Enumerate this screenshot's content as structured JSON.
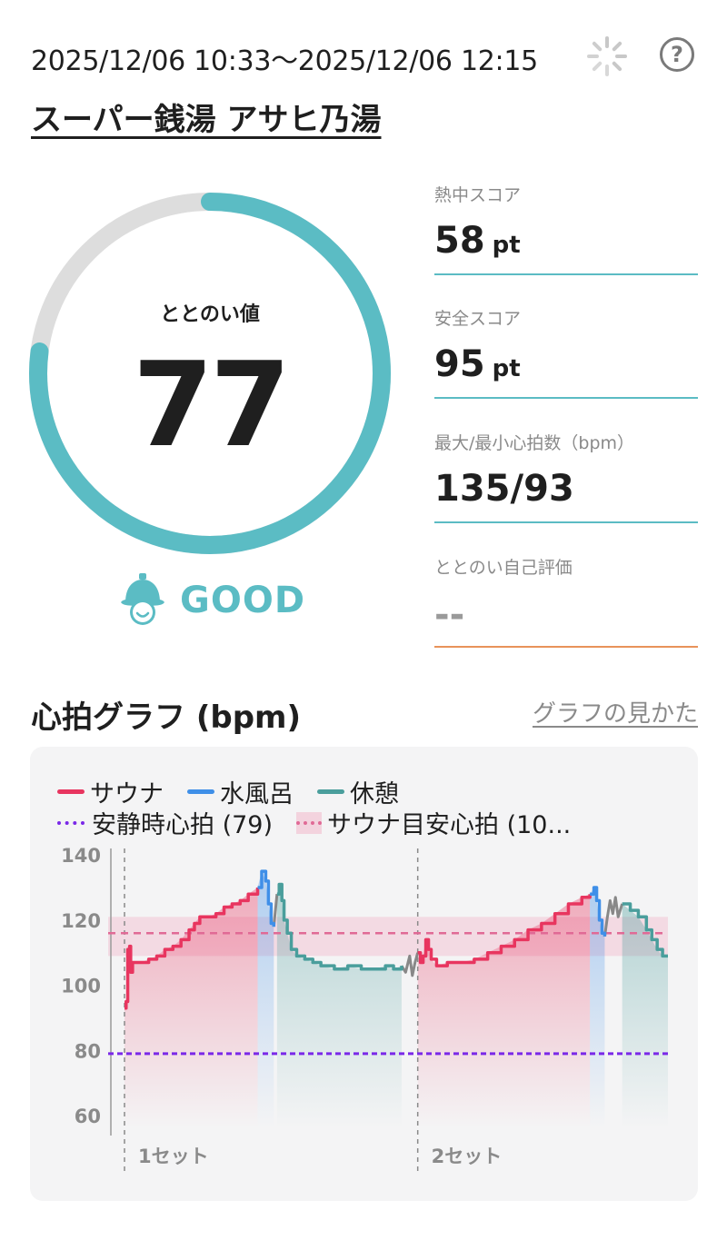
{
  "header": {
    "datetime": "2025/12/06 10:33～2025/12/06 12:15",
    "facility": "スーパー銭湯 アサヒ乃湯",
    "help_icon": "question-circle-icon",
    "loading_icon": "spinner-icon"
  },
  "totonoi": {
    "label": "ととのい値",
    "value": "77",
    "progress": 0.77,
    "rating": "GOOD",
    "rating_icon": "smiling-face-icon",
    "accent_color": "#5bbcc4",
    "track_color": "#dddddd"
  },
  "stats": {
    "heat_score": {
      "label": "熱中スコア",
      "value": "58",
      "unit": "pt"
    },
    "safety_score": {
      "label": "安全スコア",
      "value": "95",
      "unit": "pt"
    },
    "heart_rate": {
      "label": "最大/最小心拍数（bpm）",
      "value": "135/93"
    },
    "self_eval": {
      "label": "ととのい自己評価",
      "value": "--"
    }
  },
  "graph": {
    "title": "心拍グラフ (bpm)",
    "help_link": "グラフの見かた",
    "legend": {
      "sauna": "サウナ",
      "water_bath": "水風呂",
      "rest": "休憩",
      "resting_hr": "安静時心拍 (79)",
      "sauna_target": "サウナ目安心拍 (10..."
    },
    "colors": {
      "sauna": "#e8355f",
      "water_bath": "#3f8fe8",
      "rest": "#4a9e9c",
      "resting_hr": "#7a28e8",
      "sauna_target": "#e06a96",
      "transition": "#888888"
    }
  },
  "chart_data": {
    "type": "line",
    "ylim": [
      55,
      142
    ],
    "yticks": [
      "140",
      "120",
      "100",
      "80",
      "60"
    ],
    "x_ticks": [
      "1セット",
      "2セット"
    ],
    "resting_hr": 79,
    "target_band": [
      109,
      121
    ],
    "target_line": 116,
    "series": [
      {
        "name": "サウナ",
        "points": [
          [
            0,
            93
          ],
          [
            0.6,
            95
          ],
          [
            1.2,
            111
          ],
          [
            1.9,
            112
          ],
          [
            2.3,
            104
          ],
          [
            3.0,
            107
          ],
          [
            6,
            107
          ],
          [
            9,
            108
          ],
          [
            12,
            109
          ],
          [
            15,
            111
          ],
          [
            18,
            112
          ],
          [
            21,
            114
          ],
          [
            24,
            117
          ],
          [
            26,
            119
          ],
          [
            28,
            121
          ],
          [
            31,
            121
          ],
          [
            34,
            122
          ],
          [
            37,
            124
          ],
          [
            40,
            125
          ],
          [
            43,
            126
          ],
          [
            46,
            128
          ],
          [
            49.5,
            130
          ]
        ]
      },
      {
        "name": "水風呂",
        "points": [
          [
            49.5,
            130
          ],
          [
            51,
            135
          ],
          [
            52.5,
            132
          ],
          [
            53.5,
            125
          ],
          [
            54.5,
            119
          ],
          [
            55.5,
            118
          ]
        ]
      },
      {
        "name": "休憩",
        "points": [
          [
            56.7,
            128
          ],
          [
            57.5,
            131
          ],
          [
            58.5,
            126
          ],
          [
            59.3,
            120
          ],
          [
            60.5,
            116
          ],
          [
            62,
            111
          ],
          [
            64,
            109
          ],
          [
            67,
            108
          ],
          [
            70,
            107
          ],
          [
            73,
            106
          ],
          [
            78,
            105
          ],
          [
            83,
            106
          ],
          [
            88,
            105
          ],
          [
            93,
            105
          ],
          [
            97,
            106
          ],
          [
            100,
            105
          ],
          [
            103,
            106
          ]
        ]
      },
      {
        "name": "サウナ",
        "points": [
          [
            109,
            110
          ],
          [
            110,
            107
          ],
          [
            111,
            109
          ],
          [
            112,
            114
          ],
          [
            113,
            111
          ],
          [
            114,
            108
          ],
          [
            116,
            106
          ],
          [
            120,
            107
          ],
          [
            125,
            107
          ],
          [
            130,
            108
          ],
          [
            135,
            110
          ],
          [
            140,
            112
          ],
          [
            145,
            114
          ],
          [
            150,
            117
          ],
          [
            155,
            119
          ],
          [
            160,
            122
          ],
          [
            165,
            125
          ],
          [
            170,
            127
          ],
          [
            173,
            128
          ]
        ]
      },
      {
        "name": "水風呂",
        "points": [
          [
            173,
            128
          ],
          [
            174.5,
            130
          ],
          [
            175.5,
            126
          ],
          [
            176.5,
            120
          ],
          [
            177.5,
            116
          ],
          [
            178.5,
            115
          ]
        ]
      },
      {
        "name": "休憩",
        "points": [
          [
            185,
            125
          ],
          [
            188,
            123
          ],
          [
            191,
            121
          ],
          [
            194,
            117
          ],
          [
            196,
            114
          ],
          [
            198,
            111
          ],
          [
            200,
            109
          ],
          [
            202,
            109
          ]
        ]
      }
    ],
    "transitions": [
      {
        "points": [
          [
            55.5,
            118
          ],
          [
            56.7,
            128
          ]
        ]
      },
      {
        "points": [
          [
            103,
            106
          ],
          [
            104.5,
            104
          ],
          [
            106,
            109
          ],
          [
            107,
            103
          ],
          [
            108,
            107
          ],
          [
            109,
            110
          ]
        ]
      },
      {
        "points": [
          [
            178.5,
            115
          ],
          [
            179.5,
            121
          ],
          [
            180.5,
            126
          ],
          [
            181.5,
            122
          ],
          [
            182.5,
            127
          ],
          [
            183.5,
            121
          ],
          [
            185,
            125
          ]
        ]
      }
    ],
    "sessions": [
      {
        "type": "sauna",
        "x": [
          0,
          49.5
        ]
      },
      {
        "type": "water_bath",
        "x": [
          49.5,
          55.5
        ]
      },
      {
        "type": "rest",
        "x": [
          56.7,
          103
        ]
      },
      {
        "type": "sauna",
        "x": [
          109,
          173
        ]
      },
      {
        "type": "water_bath",
        "x": [
          173,
          178.5
        ]
      },
      {
        "type": "rest",
        "x": [
          185,
          202
        ]
      }
    ],
    "set_markers": [
      0,
      109
    ]
  }
}
